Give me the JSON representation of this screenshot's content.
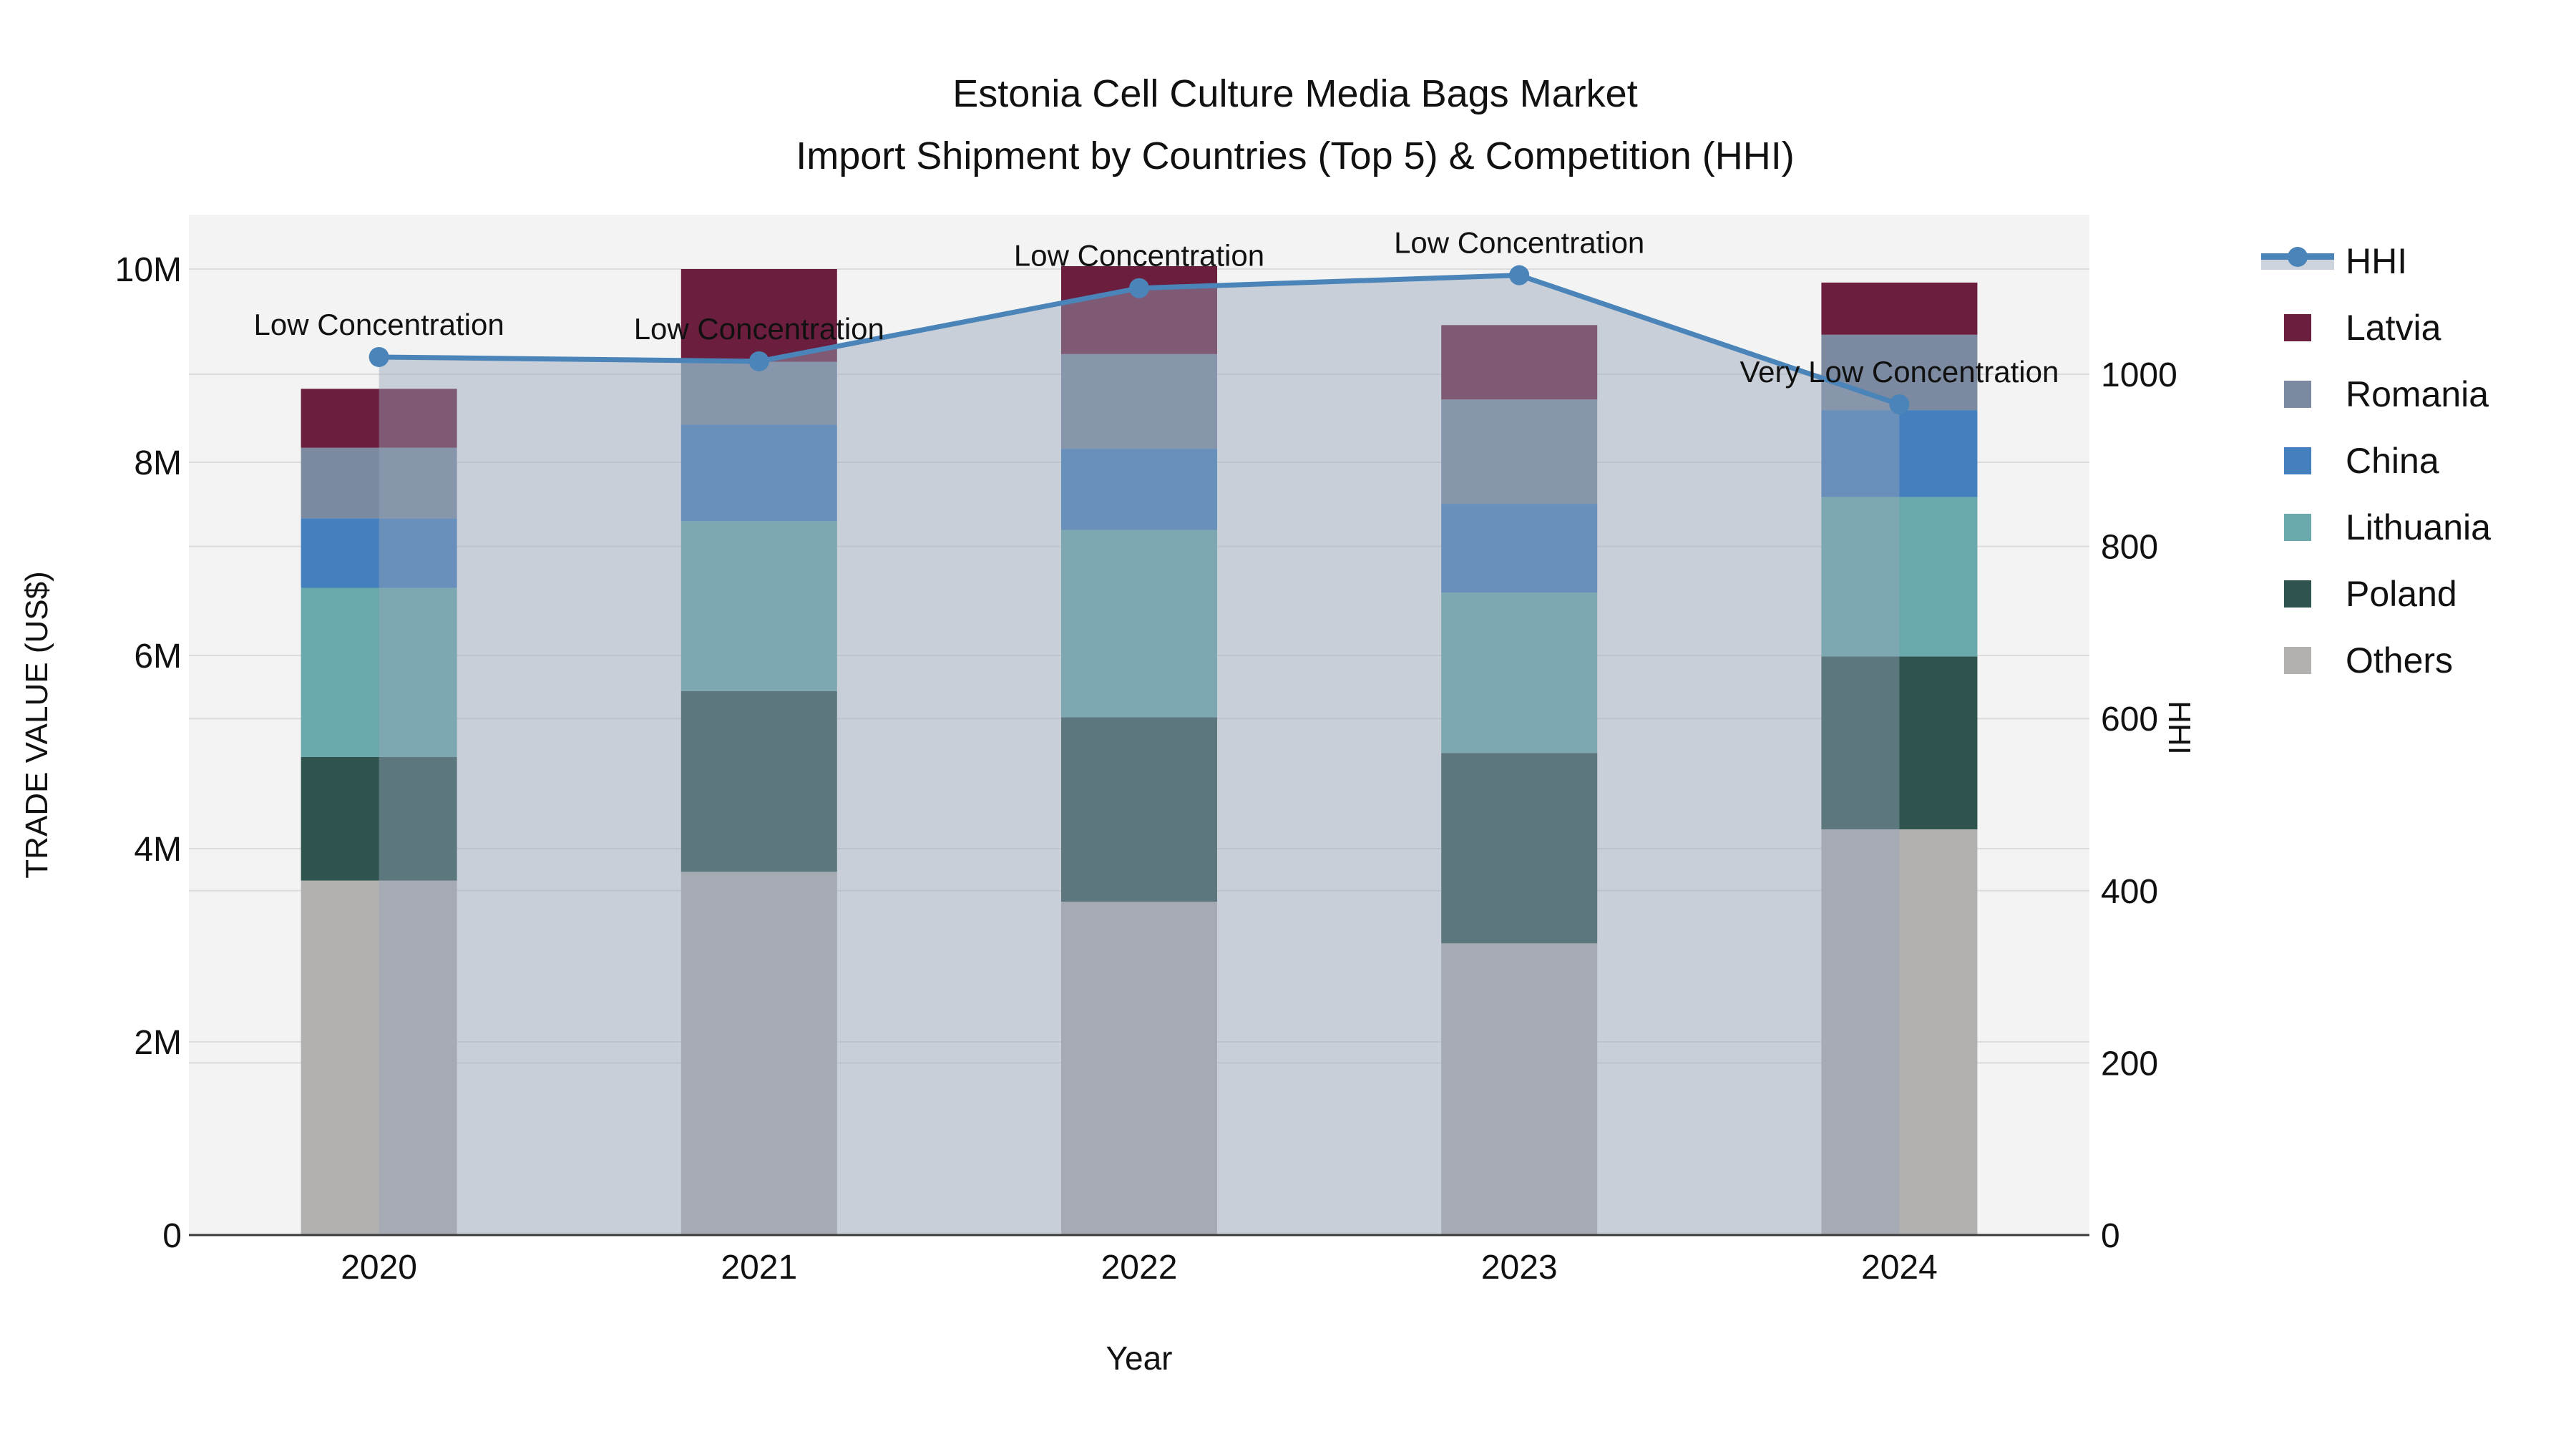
{
  "title": {
    "line1": "Estonia Cell Culture Media Bags Market",
    "line2": "Import Shipment by Countries (Top 5) & Competition (HHI)"
  },
  "colors": {
    "plot_bg": "#f2f3f2",
    "grid": "#dcdcdc",
    "axis_line": "#3a3a3a",
    "text": "#111111",
    "legend_band": "#ccd3dc",
    "hhi_line": "#4a84b8",
    "hhi_area_fill": "rgba(150,165,185,0.45)"
  },
  "axes": {
    "x": {
      "title": "Year",
      "categories": [
        "2020",
        "2021",
        "2022",
        "2023",
        "2024"
      ]
    },
    "y_left": {
      "title": "TRADE VALUE (US$)",
      "tick_values": [
        0,
        2,
        4,
        6,
        8,
        10
      ],
      "tick_labels": [
        "0",
        "2M",
        "4M",
        "6M",
        "8M",
        "10M"
      ],
      "range_musd": [
        0,
        10.56
      ],
      "grid": true
    },
    "y_right": {
      "title": "HHI",
      "tick_values": [
        0,
        200,
        400,
        600,
        800,
        1000
      ],
      "tick_labels": [
        "0",
        "200",
        "400",
        "600",
        "800",
        "1000"
      ],
      "range": [
        0,
        1185
      ],
      "grid": true
    }
  },
  "legend": {
    "position": "right",
    "items": [
      {
        "label": "HHI",
        "type": "line",
        "color": "#4a84b8"
      },
      {
        "label": "Latvia",
        "type": "square",
        "color": "#6b1e3e"
      },
      {
        "label": "Romania",
        "type": "square",
        "color": "#7b8aa0"
      },
      {
        "label": "China",
        "type": "square",
        "color": "#4480bd"
      },
      {
        "label": "Lithuania",
        "type": "square",
        "color": "#69a9ab"
      },
      {
        "label": "Poland",
        "type": "square",
        "color": "#2f534f"
      },
      {
        "label": "Others",
        "type": "square",
        "color": "#b2b1b0"
      }
    ]
  },
  "chart_data": {
    "type": "stacked_bar+line",
    "title": "Estonia Cell Culture Media Bags Market Import Shipment by Countries (Top 5) & Competition (HHI)",
    "xlabel": "Year",
    "ylabel_left": "TRADE VALUE (US$)",
    "ylabel_right": "HHI",
    "bar_unit": "US$ millions (values estimated from axis)",
    "categories": [
      "2020",
      "2021",
      "2022",
      "2023",
      "2024"
    ],
    "series": [
      {
        "name": "Others",
        "color": "#b2b1b0",
        "values": [
          3.67,
          3.76,
          3.45,
          3.02,
          4.2
        ]
      },
      {
        "name": "Poland",
        "color": "#2f534f",
        "values": [
          1.28,
          1.87,
          1.91,
          1.97,
          1.79
        ]
      },
      {
        "name": "Lithuania",
        "color": "#69a9ab",
        "values": [
          1.75,
          1.76,
          1.94,
          1.66,
          1.65
        ]
      },
      {
        "name": "China",
        "color": "#4480bd",
        "values": [
          0.72,
          1.0,
          0.84,
          0.92,
          0.9
        ]
      },
      {
        "name": "Romania",
        "color": "#7b8aa0",
        "values": [
          0.73,
          0.65,
          0.98,
          1.08,
          0.78
        ]
      },
      {
        "name": "Latvia",
        "color": "#6b1e3e",
        "values": [
          0.61,
          0.96,
          0.91,
          0.77,
          0.54
        ]
      }
    ],
    "bar_totals_musd": [
      8.76,
      10.0,
      10.03,
      9.42,
      9.86
    ],
    "line": {
      "name": "HHI",
      "color": "#4a84b8",
      "area_fill": "rgba(150,165,185,0.45)",
      "values": [
        1020,
        1015,
        1100,
        1115,
        965
      ]
    },
    "annotations": [
      {
        "category": "2020",
        "text": "Low Concentration"
      },
      {
        "category": "2021",
        "text": "Low Concentration"
      },
      {
        "category": "2022",
        "text": "Low Concentration"
      },
      {
        "category": "2023",
        "text": "Low Concentration"
      },
      {
        "category": "2024",
        "text": "Very Low Concentration"
      }
    ],
    "legend_position": "right",
    "grid": true
  }
}
